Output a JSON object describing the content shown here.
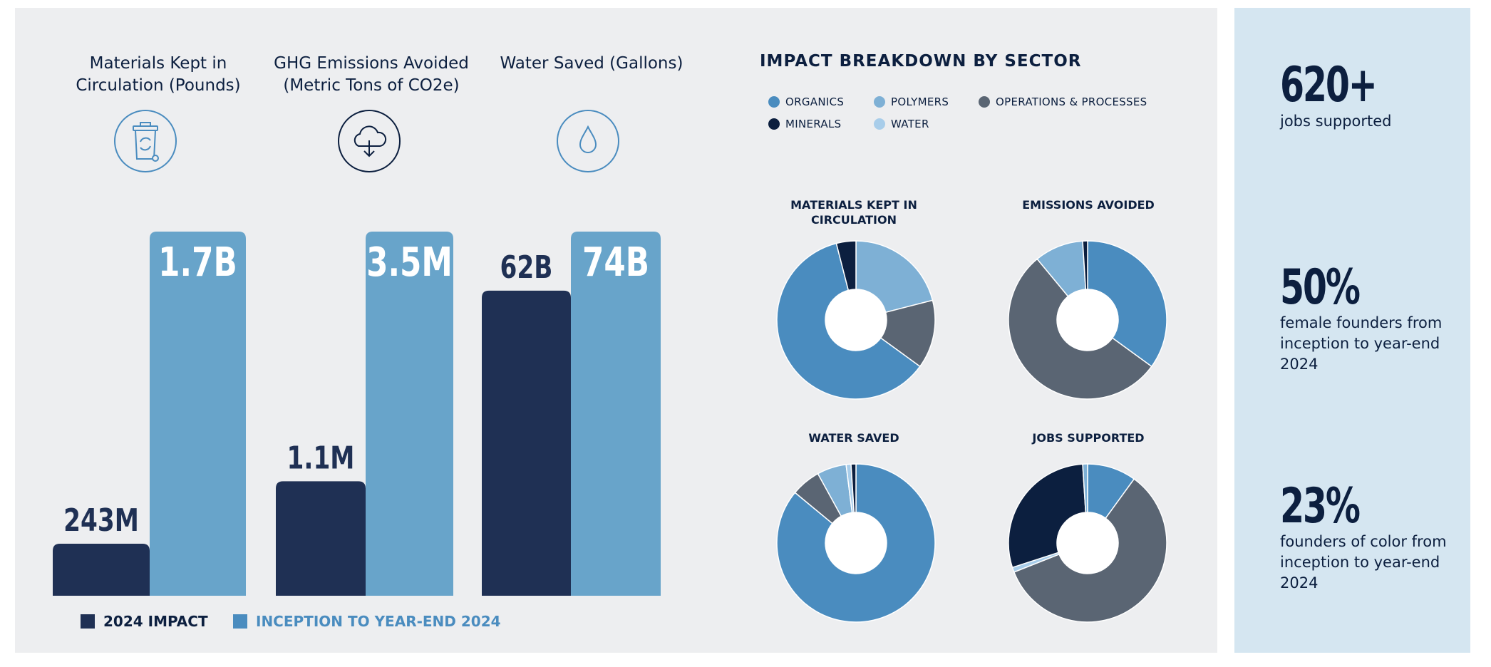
{
  "metrics": [
    {
      "title": "Materials Kept in Circulation (Pounds)",
      "icon": "recycle-bin-icon"
    },
    {
      "title": "GHG Emissions Avoided (Metric Tons of CO2e)",
      "icon": "cloud-download-icon"
    },
    {
      "title": "Water Saved (Gallons)",
      "icon": "water-drop-icon"
    }
  ],
  "chart_data": [
    {
      "type": "bar",
      "categories": [
        "Materials Kept in Circulation (Pounds)",
        "GHG Emissions Avoided (Metric Tons of CO2e)",
        "Water Saved (Gallons)"
      ],
      "series": [
        {
          "name": "2024 IMPACT",
          "values": [
            243000000,
            1100000,
            62000000000
          ],
          "labels": [
            "243M",
            "1.1M",
            "62B"
          ],
          "color": "#1f3054"
        },
        {
          "name": "INCEPTION TO YEAR-END 2024",
          "values": [
            1700000000,
            3500000,
            74000000000
          ],
          "labels": [
            "1.7B",
            "3.5M",
            "74B"
          ],
          "color": "#68a4ca"
        }
      ],
      "legend": "bottom-left"
    },
    {
      "type": "pie",
      "title": "IMPACT BREAKDOWN BY SECTOR",
      "legend_entries": [
        {
          "name": "ORGANICS",
          "color": "#4a8cbf"
        },
        {
          "name": "POLYMERS",
          "color": "#7eb0d5"
        },
        {
          "name": "OPERATIONS & PROCESSES",
          "color": "#5a6573"
        },
        {
          "name": "MINERALS",
          "color": "#0c1f3f"
        },
        {
          "name": "WATER",
          "color": "#a8cdea"
        }
      ],
      "charts": [
        {
          "title": "MATERIALS KEPT IN CIRCULATION",
          "slices": [
            {
              "sector": "POLYMERS",
              "value": 21
            },
            {
              "sector": "OPERATIONS & PROCESSES",
              "value": 14
            },
            {
              "sector": "ORGANICS",
              "value": 61
            },
            {
              "sector": "MINERALS",
              "value": 4
            }
          ]
        },
        {
          "title": "EMISSIONS AVOIDED",
          "slices": [
            {
              "sector": "ORGANICS",
              "value": 35
            },
            {
              "sector": "OPERATIONS & PROCESSES",
              "value": 54
            },
            {
              "sector": "POLYMERS",
              "value": 10
            },
            {
              "sector": "MINERALS",
              "value": 1
            }
          ]
        },
        {
          "title": "WATER SAVED",
          "slices": [
            {
              "sector": "ORGANICS",
              "value": 86
            },
            {
              "sector": "OPERATIONS & PROCESSES",
              "value": 6
            },
            {
              "sector": "POLYMERS",
              "value": 6
            },
            {
              "sector": "WATER",
              "value": 1
            },
            {
              "sector": "MINERALS",
              "value": 1
            }
          ]
        },
        {
          "title": "JOBS SUPPORTED",
          "slices": [
            {
              "sector": "ORGANICS",
              "value": 10
            },
            {
              "sector": "OPERATIONS & PROCESSES",
              "value": 59
            },
            {
              "sector": "WATER",
              "value": 1
            },
            {
              "sector": "MINERALS",
              "value": 29
            },
            {
              "sector": "POLYMERS",
              "value": 1
            }
          ]
        }
      ]
    }
  ],
  "stats": [
    {
      "value": "620+",
      "label": "jobs supported"
    },
    {
      "value": "50%",
      "label": "female founders from inception to year-end 2024"
    },
    {
      "value": "23%",
      "label": "founders of color from inception to year-end 2024"
    }
  ]
}
